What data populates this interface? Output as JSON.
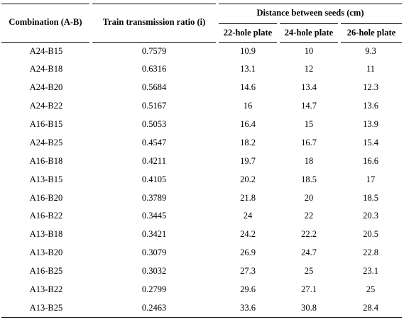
{
  "table": {
    "headers": {
      "combination": "Combination (A-B)",
      "ratio": "Train transmission ratio (i)",
      "distance_group": "Distance between seeds (cm)",
      "plate22": "22-hole plate",
      "plate24": "24-hole plate",
      "plate26": "26-hole plate"
    },
    "rows": [
      {
        "combination": "A24-B15",
        "ratio": "0.7579",
        "p22": "10.9",
        "p24": "10",
        "p26": "9.3"
      },
      {
        "combination": "A24-B18",
        "ratio": "0.6316",
        "p22": "13.1",
        "p24": "12",
        "p26": "11"
      },
      {
        "combination": "A24-B20",
        "ratio": "0.5684",
        "p22": "14.6",
        "p24": "13.4",
        "p26": "12.3"
      },
      {
        "combination": "A24-B22",
        "ratio": "0.5167",
        "p22": "16",
        "p24": "14.7",
        "p26": "13.6"
      },
      {
        "combination": "A16-B15",
        "ratio": "0.5053",
        "p22": "16.4",
        "p24": "15",
        "p26": "13.9"
      },
      {
        "combination": "A24-B25",
        "ratio": "0.4547",
        "p22": "18.2",
        "p24": "16.7",
        "p26": "15.4"
      },
      {
        "combination": "A16-B18",
        "ratio": "0.4211",
        "p22": "19.7",
        "p24": "18",
        "p26": "16.6"
      },
      {
        "combination": "A13-B15",
        "ratio": "0.4105",
        "p22": "20.2",
        "p24": "18.5",
        "p26": "17"
      },
      {
        "combination": "A16-B20",
        "ratio": "0.3789",
        "p22": "21.8",
        "p24": "20",
        "p26": "18.5"
      },
      {
        "combination": "A16-B22",
        "ratio": "0.3445",
        "p22": "24",
        "p24": "22",
        "p26": "20.3"
      },
      {
        "combination": "A13-B18",
        "ratio": "0.3421",
        "p22": "24.2",
        "p24": "22.2",
        "p26": "20.5"
      },
      {
        "combination": "A13-B20",
        "ratio": "0.3079",
        "p22": "26.9",
        "p24": "24.7",
        "p26": "22.8"
      },
      {
        "combination": "A16-B25",
        "ratio": "0.3032",
        "p22": "27.3",
        "p24": "25",
        "p26": "23.1"
      },
      {
        "combination": "A13-B22",
        "ratio": "0.2799",
        "p22": "29.6",
        "p24": "27.1",
        "p26": "25"
      },
      {
        "combination": "A13-B25",
        "ratio": "0.2463",
        "p22": "33.6",
        "p24": "30.8",
        "p26": "28.4"
      }
    ]
  }
}
